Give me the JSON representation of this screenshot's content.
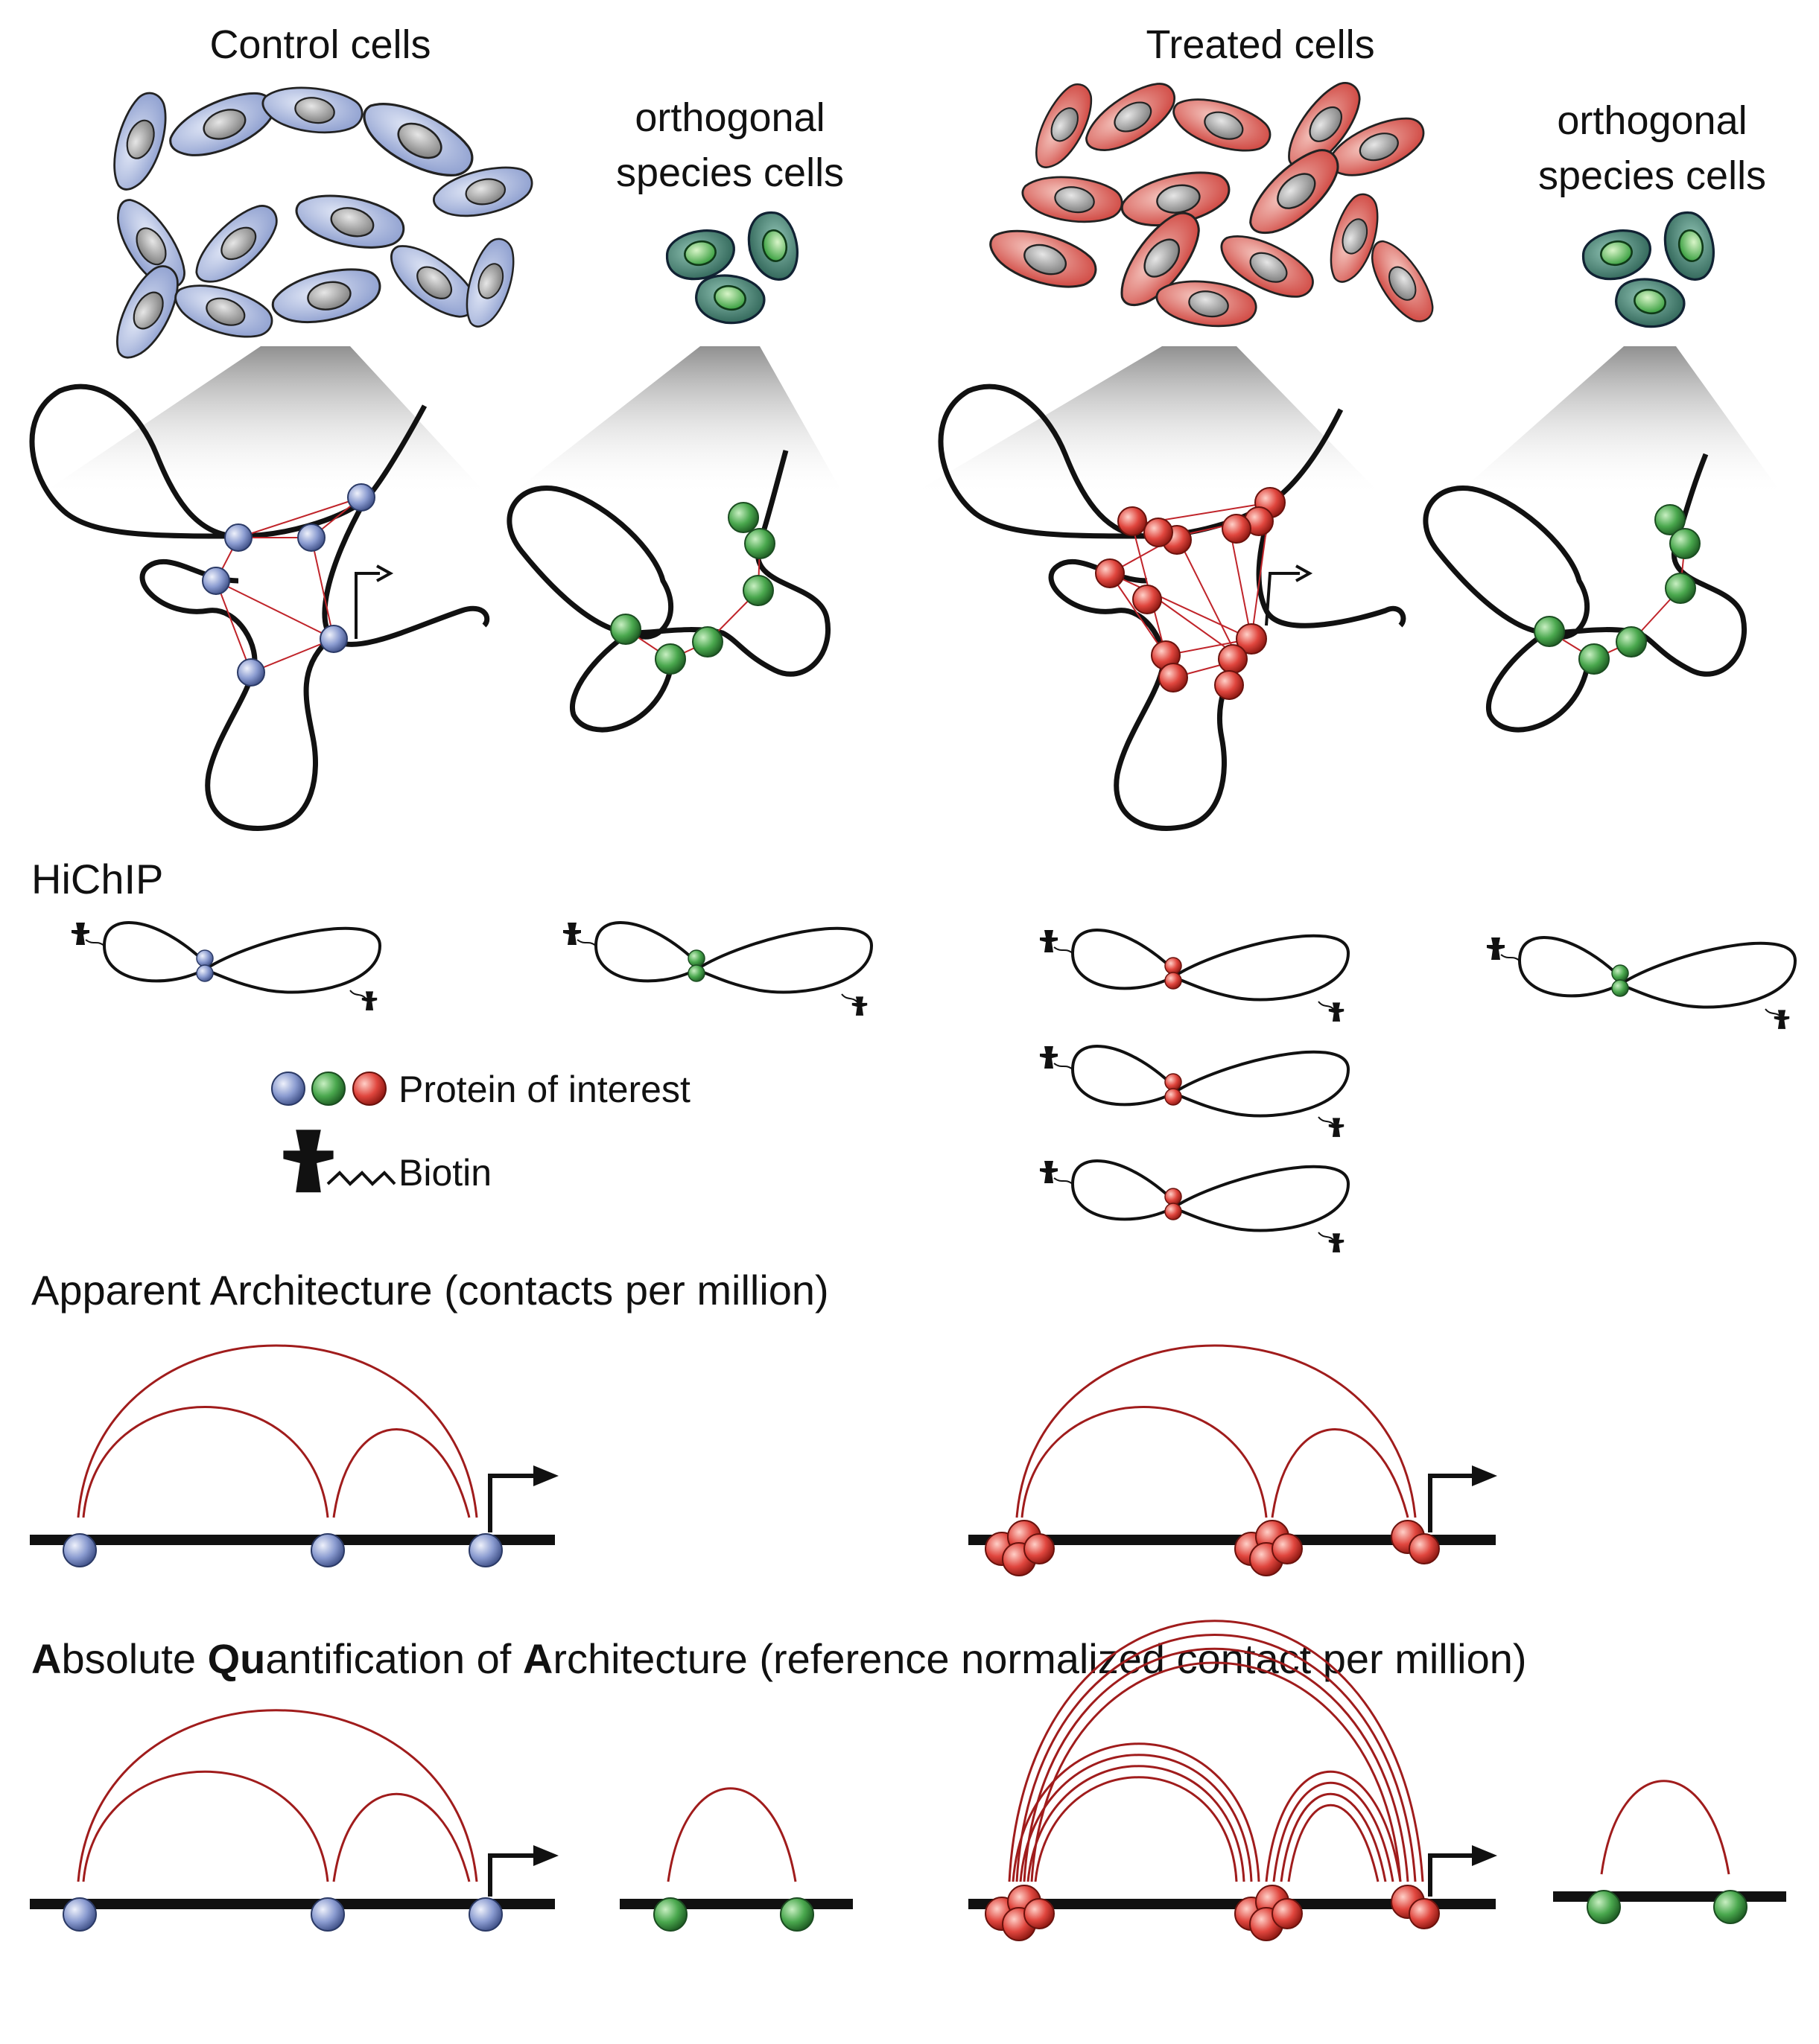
{
  "labels": {
    "control_title": "Control cells",
    "treated_title": "Treated cells",
    "ortho_line1": "orthogonal",
    "ortho_line2": "species cells",
    "hichip": "HiChIP",
    "legend_protein": "Protein of interest",
    "legend_biotin": "Biotin",
    "apparent_title": "Apparent Architecture (contacts per million)",
    "aqua_A1": "A",
    "aqua_bsolute": "bsolute ",
    "aqua_Qu": "Qu",
    "aqua_antification": "antification of ",
    "aqua_A2": "A",
    "aqua_rest": "rchitecture (reference normalized contact per million)"
  },
  "colors": {
    "blue_protein": "#7d8fc8",
    "green_protein": "#3f9a46",
    "red_protein": "#d03a35",
    "contact_arc": "#a01c1c",
    "control_cell": "#9fb0dc",
    "treated_cell": "#d9544c",
    "ortho_cell": "#2f6e5e",
    "nucleus": "#a8a8a8",
    "dna": "#111111"
  }
}
